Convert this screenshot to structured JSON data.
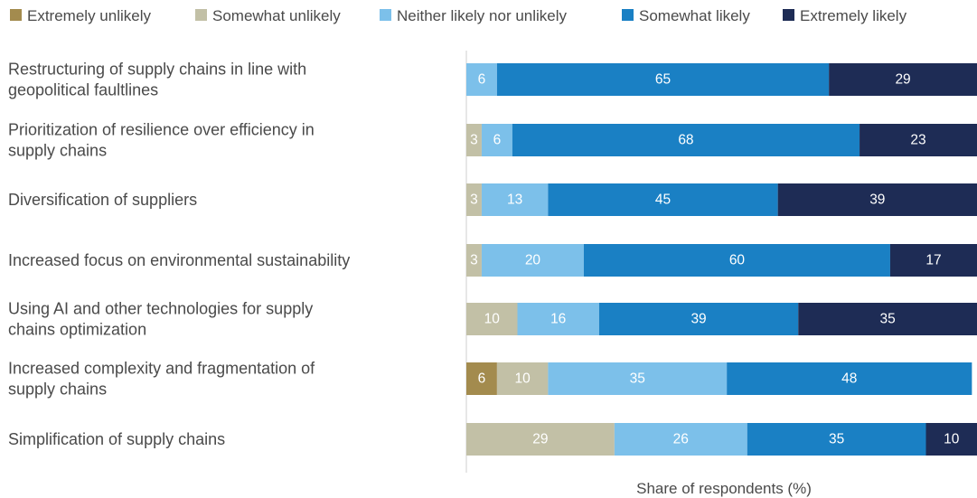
{
  "chart_data": {
    "type": "bar",
    "orientation": "horizontal",
    "stacked": true,
    "xlabel": "Share of respondents (%)",
    "xlim": [
      0,
      100
    ],
    "grid": false,
    "legend_position": "top-left",
    "categories": [
      "Restructuring of supply chains in line with geopolitical faultlines",
      "Prioritization of resilience over efficiency in supply chains",
      "Diversification of suppliers",
      "Increased focus on environmental sustainability",
      "Using AI and other technologies for supply chains optimization",
      "Increased complexity and fragmentation of supply chains",
      "Simplification of supply chains"
    ],
    "series": [
      {
        "name": "Extremely unlikely",
        "color": "#a38b4e",
        "values": [
          0,
          0,
          0,
          0,
          0,
          6,
          0
        ]
      },
      {
        "name": "Somewhat unlikely",
        "color": "#c2c0a6",
        "values": [
          0,
          3,
          3,
          3,
          10,
          10,
          29
        ]
      },
      {
        "name": "Neither likely nor unlikely",
        "color": "#7cc0ea",
        "values": [
          6,
          6,
          13,
          20,
          16,
          35,
          26
        ]
      },
      {
        "name": "Somewhat likely",
        "color": "#1a80c4",
        "values": [
          65,
          68,
          45,
          60,
          39,
          48,
          35
        ]
      },
      {
        "name": "Extremely likely",
        "color": "#1e2c55",
        "values": [
          29,
          23,
          39,
          17,
          35,
          0,
          10
        ]
      }
    ]
  }
}
